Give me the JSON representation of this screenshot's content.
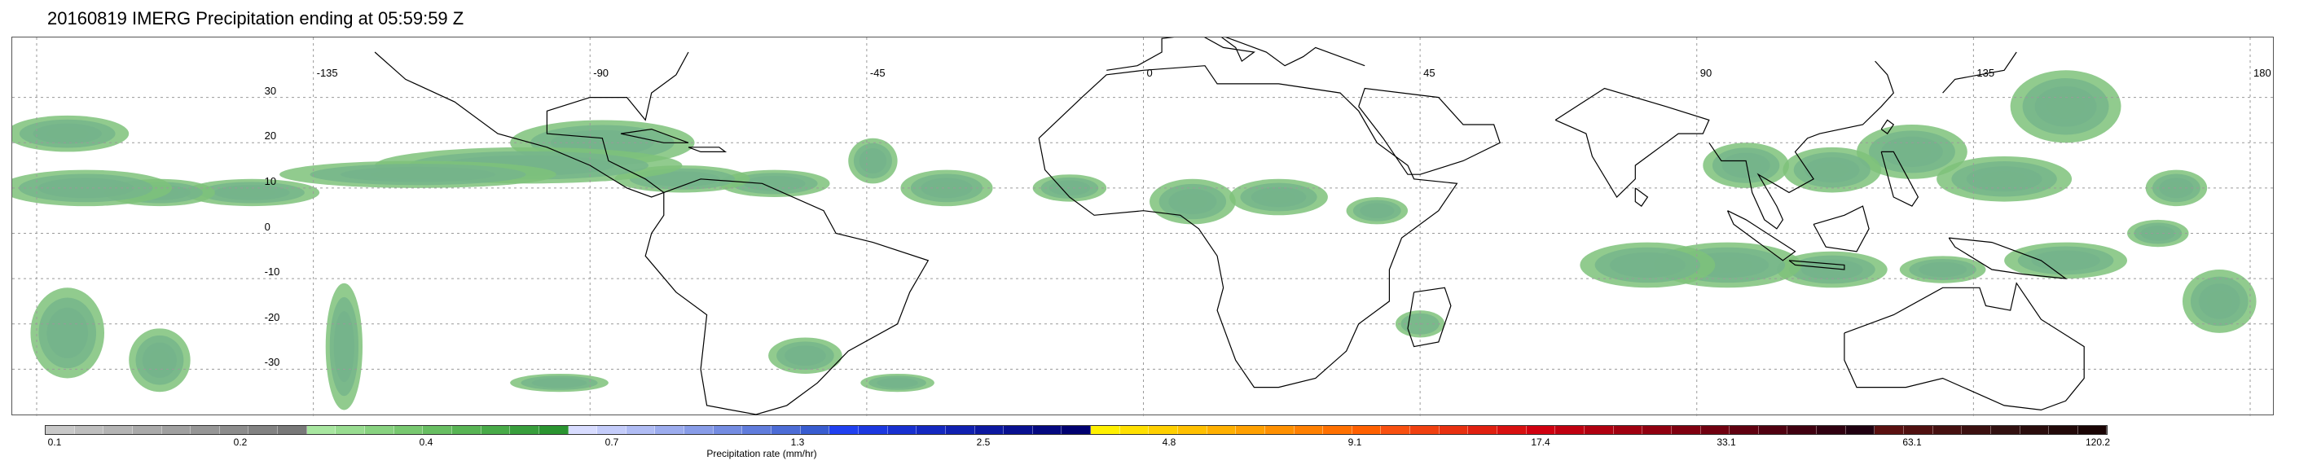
{
  "title": "20160819 IMERG Precipitation ending at 05:59:59 Z",
  "map": {
    "lon_labels": [
      "-135",
      "-90",
      "-45",
      "0",
      "45",
      "90",
      "135",
      "180"
    ],
    "lat_labels": [
      "30",
      "20",
      "10",
      "0",
      "-10",
      "-20",
      "-30"
    ]
  },
  "colorbar": {
    "label": "Precipitation rate (mm/hr)",
    "ticks": [
      "0.1",
      "0.2",
      "0.4",
      "0.7",
      "1.3",
      "2.5",
      "4.8",
      "9.1",
      "17.4",
      "33.1",
      "63.1",
      "120.2"
    ],
    "colors": [
      "#c8c8c8",
      "#bebebe",
      "#b4b4b4",
      "#aaaaaa",
      "#a0a0a0",
      "#969696",
      "#8c8c8c",
      "#828282",
      "#787878",
      "#a8e6a0",
      "#98dc90",
      "#88d280",
      "#78c870",
      "#68be62",
      "#58b454",
      "#48aa48",
      "#389e3c",
      "#2a9430",
      "#d8dcff",
      "#c4ccfa",
      "#b0bcf4",
      "#9cacee",
      "#889ce8",
      "#748ce2",
      "#607cdc",
      "#4c6cd6",
      "#385cd0",
      "#2040f0",
      "#1c38e0",
      "#1830d0",
      "#1428c0",
      "#1020b0",
      "#0c18a0",
      "#081090",
      "#040880",
      "#000070",
      "#fff000",
      "#ffe000",
      "#ffd000",
      "#ffc000",
      "#ffb000",
      "#ffa000",
      "#ff9000",
      "#ff8000",
      "#ff7000",
      "#ff6000",
      "#f85010",
      "#f04010",
      "#e83010",
      "#e02010",
      "#d81010",
      "#d00010",
      "#c00010",
      "#b00010",
      "#a00010",
      "#900010",
      "#800010",
      "#700010",
      "#600010",
      "#500010",
      "#400010",
      "#300010",
      "#200010",
      "#5a1010",
      "#501010",
      "#461010",
      "#3c1010",
      "#321010",
      "#2a0c0c",
      "#220808",
      "#1a0404"
    ]
  }
}
